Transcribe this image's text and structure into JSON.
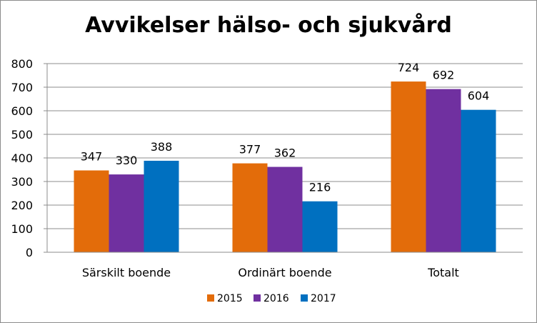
{
  "chart_data": {
    "type": "bar",
    "title": "Avvikelser hälso- och sjukvård",
    "xlabel": "",
    "ylabel": "",
    "categories": [
      "Särskilt boende",
      "Ordinärt boende",
      "Totalt"
    ],
    "series": [
      {
        "name": "2015",
        "values": [
          347,
          377,
          724
        ],
        "color": "#e36c0a"
      },
      {
        "name": "2016",
        "values": [
          330,
          362,
          692
        ],
        "color": "#7030a0"
      },
      {
        "name": "2017",
        "values": [
          388,
          216,
          604
        ],
        "color": "#0070c0"
      }
    ],
    "ylim": [
      0,
      800
    ],
    "yticks": [
      0,
      100,
      200,
      300,
      400,
      500,
      600,
      700,
      800
    ],
    "grid": true,
    "legend": "bottom",
    "data_labels": true
  }
}
